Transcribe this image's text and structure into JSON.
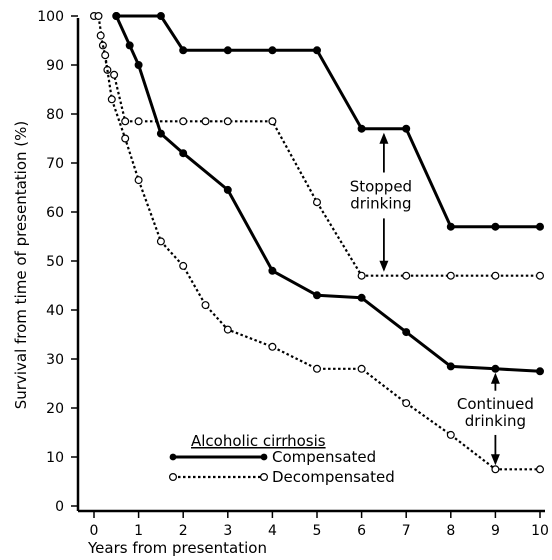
{
  "chart_data": {
    "type": "line",
    "title": "",
    "xlabel": "Years from presentation",
    "ylabel": "Survival from time of presentation (%)",
    "xlim": [
      0,
      10
    ],
    "ylim": [
      0,
      100
    ],
    "x_ticks": [
      "0",
      "1",
      "2",
      "3",
      "4",
      "5",
      "6",
      "7",
      "8",
      "9",
      "10"
    ],
    "y_ticks": [
      "0",
      "10",
      "20",
      "30",
      "40",
      "50",
      "60",
      "70",
      "80",
      "90",
      "100"
    ],
    "grid": false,
    "legend": {
      "title": "Alcoholic cirrhosis",
      "placement": "bottom-center"
    },
    "series": [
      {
        "group": "compensated",
        "name": "Compensated",
        "condition": "stopped drinking",
        "style": "solid",
        "points": [
          [
            0.5,
            100
          ],
          [
            1.5,
            100
          ],
          [
            2,
            93
          ],
          [
            3,
            93
          ],
          [
            4,
            93
          ],
          [
            5,
            93
          ],
          [
            6,
            77
          ],
          [
            7,
            77
          ],
          [
            8,
            57
          ],
          [
            9,
            57
          ],
          [
            10,
            57
          ]
        ]
      },
      {
        "group": "compensated",
        "name": "Compensated",
        "condition": "continued drinking",
        "style": "solid",
        "points": [
          [
            0.5,
            100
          ],
          [
            0.8,
            94
          ],
          [
            1,
            90
          ],
          [
            1.5,
            76
          ],
          [
            2,
            72
          ],
          [
            3,
            64.5
          ],
          [
            4,
            48
          ],
          [
            5,
            43
          ],
          [
            6,
            42.5
          ],
          [
            7,
            35.5
          ],
          [
            8,
            28.5
          ],
          [
            9,
            28
          ],
          [
            10,
            27.5
          ]
        ]
      },
      {
        "group": "decompensated",
        "name": "Decompensated",
        "condition": "stopped drinking",
        "style": "dotted",
        "points": [
          [
            0,
            100
          ],
          [
            0.1,
            100
          ],
          [
            0.2,
            94
          ],
          [
            0.3,
            89
          ],
          [
            0.45,
            88
          ],
          [
            0.7,
            78.5
          ],
          [
            1,
            78.5
          ],
          [
            2,
            78.5
          ],
          [
            2.5,
            78.5
          ],
          [
            3,
            78.5
          ],
          [
            4,
            78.5
          ],
          [
            5,
            62
          ],
          [
            6,
            47
          ],
          [
            7,
            47
          ],
          [
            8,
            47
          ],
          [
            9,
            47
          ],
          [
            10,
            47
          ]
        ]
      },
      {
        "group": "decompensated",
        "name": "Decompensated",
        "condition": "continued drinking",
        "style": "dotted",
        "points": [
          [
            0.15,
            96
          ],
          [
            0.25,
            92
          ],
          [
            0.4,
            83
          ],
          [
            0.7,
            75
          ],
          [
            1,
            66.5
          ],
          [
            1.5,
            54
          ],
          [
            2,
            49
          ],
          [
            2.5,
            41
          ],
          [
            3,
            36
          ],
          [
            4,
            32.5
          ],
          [
            5,
            28
          ],
          [
            6,
            28
          ],
          [
            7,
            21
          ],
          [
            8,
            14.5
          ],
          [
            9,
            7.5
          ],
          [
            10,
            7.5
          ]
        ]
      }
    ],
    "annotations": [
      {
        "text_lines": [
          "Stopped",
          "drinking"
        ],
        "x": 6.5,
        "arrow_from": 77,
        "arrow_to": 47
      },
      {
        "text_lines": [
          "Continued",
          "drinking"
        ],
        "x": 9,
        "arrow_from": 28,
        "arrow_to": 7.5
      }
    ]
  }
}
